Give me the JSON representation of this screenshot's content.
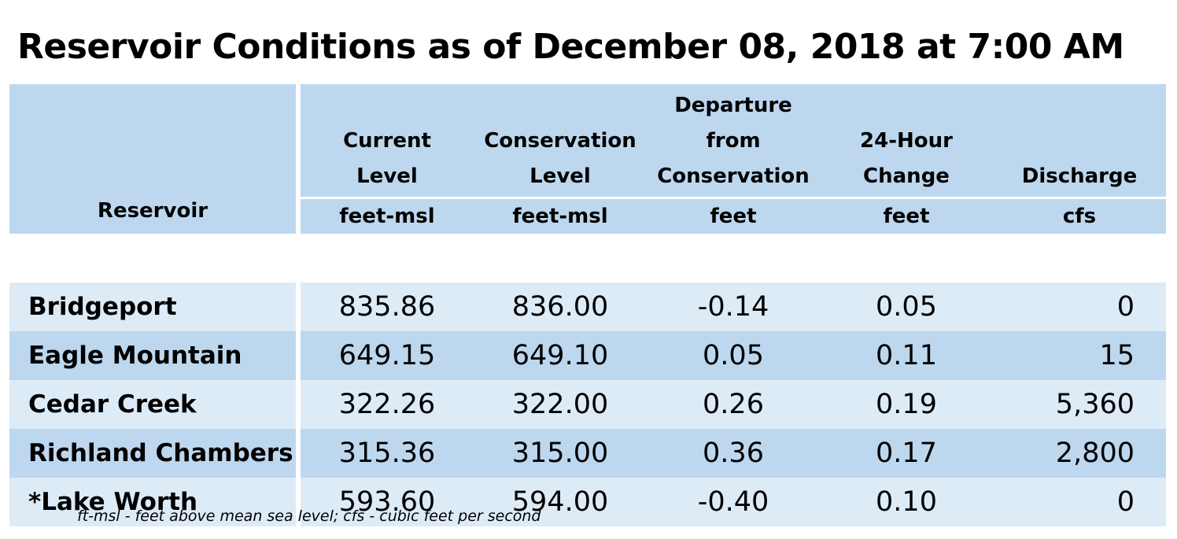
{
  "title": "Reservoir Conditions as of December 08, 2018 at 7:00 AM",
  "table": {
    "headers": [
      {
        "label_lines": [
          "Reservoir"
        ],
        "unit": ""
      },
      {
        "label_lines": [
          "Current",
          "Level"
        ],
        "unit": "feet-msl"
      },
      {
        "label_lines": [
          "Conservation",
          "Level"
        ],
        "unit": "feet-msl"
      },
      {
        "label_lines": [
          "Departure",
          "from",
          "Conservation"
        ],
        "unit": "feet"
      },
      {
        "label_lines": [
          "24-Hour",
          "Change"
        ],
        "unit": "feet"
      },
      {
        "label_lines": [
          "Discharge"
        ],
        "unit": "cfs"
      }
    ],
    "rows": [
      {
        "reservoir": "Bridgeport",
        "current_level": "835.86",
        "conservation_level": "836.00",
        "departure": "-0.14",
        "change_24h": "0.05",
        "discharge": "0"
      },
      {
        "reservoir": "Eagle Mountain",
        "current_level": "649.15",
        "conservation_level": "649.10",
        "departure": "0.05",
        "change_24h": "0.11",
        "discharge": "15"
      },
      {
        "reservoir": "Cedar Creek",
        "current_level": "322.26",
        "conservation_level": "322.00",
        "departure": "0.26",
        "change_24h": "0.19",
        "discharge": "5,360"
      },
      {
        "reservoir": "Richland Chambers",
        "current_level": "315.36",
        "conservation_level": "315.00",
        "departure": "0.36",
        "change_24h": "0.17",
        "discharge": "2,800"
      },
      {
        "reservoir": "*Lake Worth",
        "current_level": "593.60",
        "conservation_level": "594.00",
        "departure": "-0.40",
        "change_24h": "0.10",
        "discharge": "0"
      }
    ]
  },
  "footnote": "ft-msl - feet above mean sea level; cfs - cubic feet per second",
  "colors": {
    "header_bg": "#bdd7ee",
    "row_light": "#ddebf7",
    "row_dark": "#bdd7ee"
  }
}
